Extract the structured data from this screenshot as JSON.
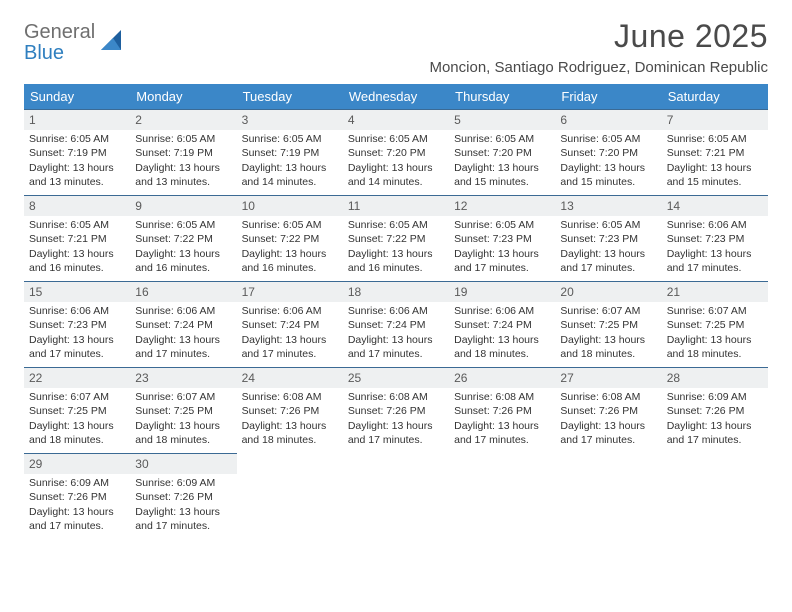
{
  "logo": {
    "general": "General",
    "blue": "Blue"
  },
  "title": "June 2025",
  "location": "Moncion, Santiago Rodriguez, Dominican Republic",
  "weekday_headers": [
    "Sunday",
    "Monday",
    "Tuesday",
    "Wednesday",
    "Thursday",
    "Friday",
    "Saturday"
  ],
  "header_bg": "#3b87c8",
  "header_fg": "#ffffff",
  "daynum_bg": "#eef0f1",
  "rule_color": "#3b6a94",
  "days": [
    {
      "n": "1",
      "sr": "Sunrise: 6:05 AM",
      "ss": "Sunset: 7:19 PM",
      "d1": "Daylight: 13 hours",
      "d2": "and 13 minutes."
    },
    {
      "n": "2",
      "sr": "Sunrise: 6:05 AM",
      "ss": "Sunset: 7:19 PM",
      "d1": "Daylight: 13 hours",
      "d2": "and 13 minutes."
    },
    {
      "n": "3",
      "sr": "Sunrise: 6:05 AM",
      "ss": "Sunset: 7:19 PM",
      "d1": "Daylight: 13 hours",
      "d2": "and 14 minutes."
    },
    {
      "n": "4",
      "sr": "Sunrise: 6:05 AM",
      "ss": "Sunset: 7:20 PM",
      "d1": "Daylight: 13 hours",
      "d2": "and 14 minutes."
    },
    {
      "n": "5",
      "sr": "Sunrise: 6:05 AM",
      "ss": "Sunset: 7:20 PM",
      "d1": "Daylight: 13 hours",
      "d2": "and 15 minutes."
    },
    {
      "n": "6",
      "sr": "Sunrise: 6:05 AM",
      "ss": "Sunset: 7:20 PM",
      "d1": "Daylight: 13 hours",
      "d2": "and 15 minutes."
    },
    {
      "n": "7",
      "sr": "Sunrise: 6:05 AM",
      "ss": "Sunset: 7:21 PM",
      "d1": "Daylight: 13 hours",
      "d2": "and 15 minutes."
    },
    {
      "n": "8",
      "sr": "Sunrise: 6:05 AM",
      "ss": "Sunset: 7:21 PM",
      "d1": "Daylight: 13 hours",
      "d2": "and 16 minutes."
    },
    {
      "n": "9",
      "sr": "Sunrise: 6:05 AM",
      "ss": "Sunset: 7:22 PM",
      "d1": "Daylight: 13 hours",
      "d2": "and 16 minutes."
    },
    {
      "n": "10",
      "sr": "Sunrise: 6:05 AM",
      "ss": "Sunset: 7:22 PM",
      "d1": "Daylight: 13 hours",
      "d2": "and 16 minutes."
    },
    {
      "n": "11",
      "sr": "Sunrise: 6:05 AM",
      "ss": "Sunset: 7:22 PM",
      "d1": "Daylight: 13 hours",
      "d2": "and 16 minutes."
    },
    {
      "n": "12",
      "sr": "Sunrise: 6:05 AM",
      "ss": "Sunset: 7:23 PM",
      "d1": "Daylight: 13 hours",
      "d2": "and 17 minutes."
    },
    {
      "n": "13",
      "sr": "Sunrise: 6:05 AM",
      "ss": "Sunset: 7:23 PM",
      "d1": "Daylight: 13 hours",
      "d2": "and 17 minutes."
    },
    {
      "n": "14",
      "sr": "Sunrise: 6:06 AM",
      "ss": "Sunset: 7:23 PM",
      "d1": "Daylight: 13 hours",
      "d2": "and 17 minutes."
    },
    {
      "n": "15",
      "sr": "Sunrise: 6:06 AM",
      "ss": "Sunset: 7:23 PM",
      "d1": "Daylight: 13 hours",
      "d2": "and 17 minutes."
    },
    {
      "n": "16",
      "sr": "Sunrise: 6:06 AM",
      "ss": "Sunset: 7:24 PM",
      "d1": "Daylight: 13 hours",
      "d2": "and 17 minutes."
    },
    {
      "n": "17",
      "sr": "Sunrise: 6:06 AM",
      "ss": "Sunset: 7:24 PM",
      "d1": "Daylight: 13 hours",
      "d2": "and 17 minutes."
    },
    {
      "n": "18",
      "sr": "Sunrise: 6:06 AM",
      "ss": "Sunset: 7:24 PM",
      "d1": "Daylight: 13 hours",
      "d2": "and 17 minutes."
    },
    {
      "n": "19",
      "sr": "Sunrise: 6:06 AM",
      "ss": "Sunset: 7:24 PM",
      "d1": "Daylight: 13 hours",
      "d2": "and 18 minutes."
    },
    {
      "n": "20",
      "sr": "Sunrise: 6:07 AM",
      "ss": "Sunset: 7:25 PM",
      "d1": "Daylight: 13 hours",
      "d2": "and 18 minutes."
    },
    {
      "n": "21",
      "sr": "Sunrise: 6:07 AM",
      "ss": "Sunset: 7:25 PM",
      "d1": "Daylight: 13 hours",
      "d2": "and 18 minutes."
    },
    {
      "n": "22",
      "sr": "Sunrise: 6:07 AM",
      "ss": "Sunset: 7:25 PM",
      "d1": "Daylight: 13 hours",
      "d2": "and 18 minutes."
    },
    {
      "n": "23",
      "sr": "Sunrise: 6:07 AM",
      "ss": "Sunset: 7:25 PM",
      "d1": "Daylight: 13 hours",
      "d2": "and 18 minutes."
    },
    {
      "n": "24",
      "sr": "Sunrise: 6:08 AM",
      "ss": "Sunset: 7:26 PM",
      "d1": "Daylight: 13 hours",
      "d2": "and 18 minutes."
    },
    {
      "n": "25",
      "sr": "Sunrise: 6:08 AM",
      "ss": "Sunset: 7:26 PM",
      "d1": "Daylight: 13 hours",
      "d2": "and 17 minutes."
    },
    {
      "n": "26",
      "sr": "Sunrise: 6:08 AM",
      "ss": "Sunset: 7:26 PM",
      "d1": "Daylight: 13 hours",
      "d2": "and 17 minutes."
    },
    {
      "n": "27",
      "sr": "Sunrise: 6:08 AM",
      "ss": "Sunset: 7:26 PM",
      "d1": "Daylight: 13 hours",
      "d2": "and 17 minutes."
    },
    {
      "n": "28",
      "sr": "Sunrise: 6:09 AM",
      "ss": "Sunset: 7:26 PM",
      "d1": "Daylight: 13 hours",
      "d2": "and 17 minutes."
    },
    {
      "n": "29",
      "sr": "Sunrise: 6:09 AM",
      "ss": "Sunset: 7:26 PM",
      "d1": "Daylight: 13 hours",
      "d2": "and 17 minutes."
    },
    {
      "n": "30",
      "sr": "Sunrise: 6:09 AM",
      "ss": "Sunset: 7:26 PM",
      "d1": "Daylight: 13 hours",
      "d2": "and 17 minutes."
    }
  ]
}
